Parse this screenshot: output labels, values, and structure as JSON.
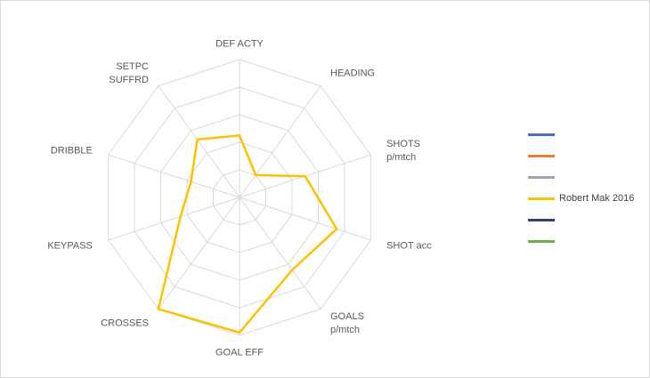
{
  "chart_data": {
    "type": "radar",
    "title": "",
    "axes": [
      {
        "label": "DEF ACTY",
        "lines": [
          "DEF ACTY"
        ]
      },
      {
        "label": "HEADING",
        "lines": [
          "HEADING"
        ]
      },
      {
        "label": "SHOTS p/mtch",
        "lines": [
          "SHOTS",
          "p/mtch"
        ]
      },
      {
        "label": "SHOT acc",
        "lines": [
          "SHOT acc"
        ]
      },
      {
        "label": "GOALS p/mtch",
        "lines": [
          "GOALS",
          "p/mtch"
        ]
      },
      {
        "label": "GOAL EFF",
        "lines": [
          "GOAL EFF"
        ]
      },
      {
        "label": "CROSSES",
        "lines": [
          "CROSSES"
        ]
      },
      {
        "label": "KEYPASS",
        "lines": [
          "KEYPASS"
        ]
      },
      {
        "label": "DRIBBLE",
        "lines": [
          "DRIBBLE"
        ]
      },
      {
        "label": "SETPC SUFFRD",
        "lines": [
          "SETPC",
          "SUFFRD"
        ]
      }
    ],
    "axis_max": 1,
    "grid_levels": 5,
    "grid_on": true,
    "grid_color": "#d9d9d9",
    "series": [
      {
        "name": "Robert Mak 2016",
        "color": "#FFC000",
        "values": [
          0.45,
          0.2,
          0.5,
          0.74,
          0.65,
          0.98,
          1.0,
          0.45,
          0.37,
          0.52
        ]
      }
    ],
    "legend": {
      "position": "right",
      "entries": [
        {
          "label": "",
          "color": "#4472C4"
        },
        {
          "label": "",
          "color": "#ED7D31"
        },
        {
          "label": "",
          "color": "#A5A5A5"
        },
        {
          "label": "Robert Mak 2016",
          "color": "#FFC000"
        },
        {
          "label": "",
          "color": "#264478"
        },
        {
          "label": "",
          "color": "#70AD47"
        }
      ]
    }
  }
}
